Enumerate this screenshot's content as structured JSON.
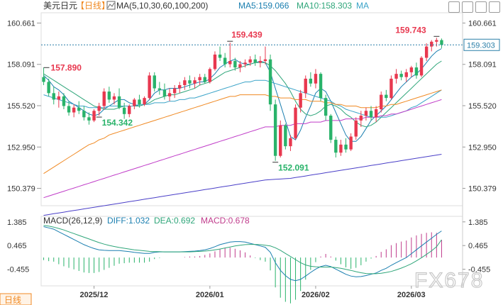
{
  "header": {
    "symbol": "美元日元",
    "period": "【日线】",
    "ma_label": "MA(5,10,30,60,100,200)",
    "ma5": "MA5:159.066",
    "ma10": "MA10:158.303",
    "ma": "MA"
  },
  "macd_header": {
    "title": "MACD(26,12,9)",
    "diff": "DIFF:1.032",
    "dea": "DEA:0.692",
    "macd": "MACD:0.678"
  },
  "bottom_label": "日线",
  "watermark": "FX678",
  "colors": {
    "up": "#e8384f",
    "down": "#29b36a",
    "ma5": "#1b7fb0",
    "ma10": "#2fa67a",
    "ma30": "#3aa3c8",
    "ma60": "#f08a24",
    "ma100": "#c03cc8",
    "ma200": "#4a3fc8",
    "price_line": "#2a7fa8",
    "label_high": "#e8384f",
    "label_low": "#29b36a"
  },
  "chart_data": {
    "type": "candlestick",
    "title": "美元日元 日线",
    "y_ticks": [
      150.379,
      152.95,
      155.52,
      158.091,
      160.661
    ],
    "y_tick_labels": [
      "150.379",
      "152.950",
      "155.520",
      "158.091",
      "160.661"
    ],
    "ylim": [
      149.3,
      161.3
    ],
    "x_ticks": [
      {
        "index": 10,
        "label": "2025/12"
      },
      {
        "index": 33,
        "label": "2026/01"
      },
      {
        "index": 54,
        "label": "2026/02"
      },
      {
        "index": 73,
        "label": "2026/03"
      }
    ],
    "current_price": 159.303,
    "current_price_label": "159.303",
    "annotations": [
      {
        "index": 0,
        "value": 157.89,
        "label": "157.890",
        "kind": "high"
      },
      {
        "index": 11,
        "value": 154.342,
        "label": "154.342",
        "kind": "low"
      },
      {
        "index": 37,
        "value": 159.439,
        "label": "159.439",
        "kind": "high"
      },
      {
        "index": 46,
        "value": 152.091,
        "label": "152.091",
        "kind": "low"
      },
      {
        "index": 78,
        "value": 159.743,
        "label": "159.743",
        "kind": "high"
      }
    ],
    "candles": [
      [
        157.3,
        157.89,
        156.8,
        157.0
      ],
      [
        157.0,
        157.2,
        156.1,
        156.3
      ],
      [
        156.3,
        156.7,
        155.6,
        155.9
      ],
      [
        155.9,
        156.4,
        155.4,
        156.1
      ],
      [
        156.1,
        156.3,
        155.3,
        155.5
      ],
      [
        155.5,
        155.8,
        154.9,
        155.1
      ],
      [
        155.1,
        155.6,
        154.8,
        155.4
      ],
      [
        155.4,
        155.8,
        155.0,
        155.2
      ],
      [
        155.2,
        155.5,
        154.6,
        154.8
      ],
      [
        154.8,
        155.1,
        154.342,
        154.6
      ],
      [
        154.6,
        155.3,
        154.5,
        155.2
      ],
      [
        155.2,
        155.7,
        154.9,
        155.5
      ],
      [
        155.5,
        156.6,
        155.3,
        156.4
      ],
      [
        156.4,
        156.7,
        155.7,
        155.9
      ],
      [
        155.9,
        156.3,
        155.6,
        156.1
      ],
      [
        156.1,
        156.6,
        155.3,
        155.4
      ],
      [
        155.4,
        155.7,
        154.7,
        155.0
      ],
      [
        155.0,
        155.6,
        154.8,
        155.5
      ],
      [
        155.5,
        156.0,
        155.3,
        155.9
      ],
      [
        155.9,
        156.2,
        155.4,
        155.6
      ],
      [
        155.6,
        156.1,
        155.5,
        156.0
      ],
      [
        156.0,
        157.6,
        155.9,
        157.4
      ],
      [
        157.4,
        157.6,
        156.4,
        156.6
      ],
      [
        156.6,
        157.0,
        156.2,
        156.5
      ],
      [
        156.5,
        156.9,
        155.9,
        156.1
      ],
      [
        156.1,
        156.6,
        155.8,
        156.3
      ],
      [
        156.3,
        156.8,
        156.0,
        156.6
      ],
      [
        156.6,
        157.0,
        156.3,
        156.8
      ],
      [
        156.8,
        157.3,
        156.5,
        157.1
      ],
      [
        157.1,
        157.4,
        156.6,
        156.9
      ],
      [
        156.9,
        157.3,
        156.6,
        157.1
      ],
      [
        157.1,
        157.5,
        156.8,
        157.3
      ],
      [
        157.3,
        157.5,
        156.9,
        157.0
      ],
      [
        157.0,
        157.9,
        156.9,
        157.8
      ],
      [
        157.8,
        158.9,
        157.7,
        158.7
      ],
      [
        158.7,
        159.2,
        158.3,
        158.5
      ],
      [
        158.5,
        158.8,
        157.9,
        158.1
      ],
      [
        158.1,
        159.439,
        157.9,
        158.3
      ],
      [
        158.3,
        158.5,
        157.7,
        157.9
      ],
      [
        157.9,
        158.3,
        157.6,
        158.1
      ],
      [
        158.1,
        158.4,
        157.9,
        158.2
      ],
      [
        158.2,
        158.6,
        158.0,
        158.4
      ],
      [
        158.4,
        158.7,
        158.0,
        158.2
      ],
      [
        158.2,
        158.6,
        157.9,
        158.3
      ],
      [
        158.3,
        159.2,
        158.1,
        158.4
      ],
      [
        158.4,
        158.7,
        155.2,
        155.6
      ],
      [
        155.6,
        155.9,
        152.091,
        152.4
      ],
      [
        152.4,
        154.6,
        152.3,
        154.3
      ],
      [
        154.3,
        154.4,
        152.8,
        153.0
      ],
      [
        153.0,
        153.7,
        152.7,
        153.5
      ],
      [
        153.5,
        155.6,
        153.4,
        155.4
      ],
      [
        155.4,
        156.5,
        155.1,
        156.3
      ],
      [
        156.3,
        157.4,
        156.0,
        157.2
      ],
      [
        157.2,
        157.6,
        156.7,
        156.9
      ],
      [
        156.9,
        157.8,
        156.6,
        157.5
      ],
      [
        157.5,
        157.6,
        155.8,
        156.0
      ],
      [
        156.0,
        156.2,
        154.6,
        154.9
      ],
      [
        154.9,
        155.0,
        153.2,
        153.4
      ],
      [
        153.4,
        153.6,
        152.3,
        152.6
      ],
      [
        152.6,
        153.4,
        152.4,
        153.1
      ],
      [
        153.1,
        153.5,
        152.6,
        152.8
      ],
      [
        152.8,
        153.8,
        152.7,
        153.6
      ],
      [
        153.6,
        154.8,
        153.4,
        154.6
      ],
      [
        154.6,
        155.2,
        154.2,
        154.9
      ],
      [
        154.9,
        155.4,
        154.6,
        155.2
      ],
      [
        155.2,
        155.5,
        154.6,
        154.8
      ],
      [
        154.8,
        155.5,
        154.5,
        155.3
      ],
      [
        155.3,
        156.4,
        155.1,
        156.2
      ],
      [
        156.2,
        156.5,
        155.8,
        156.0
      ],
      [
        156.0,
        157.4,
        155.9,
        157.2
      ],
      [
        157.2,
        157.8,
        156.9,
        157.5
      ],
      [
        157.5,
        157.7,
        157.1,
        157.3
      ],
      [
        157.3,
        157.8,
        157.0,
        157.6
      ],
      [
        157.6,
        158.0,
        157.3,
        157.9
      ],
      [
        157.9,
        158.2,
        157.2,
        157.4
      ],
      [
        157.4,
        158.6,
        157.3,
        158.5
      ],
      [
        158.5,
        159.4,
        158.3,
        159.2
      ],
      [
        159.2,
        159.6,
        158.9,
        159.5
      ],
      [
        159.5,
        159.743,
        159.2,
        159.6
      ],
      [
        159.6,
        159.7,
        159.1,
        159.3
      ]
    ],
    "series": [
      {
        "name": "MA5",
        "values": [
          157.4,
          157.1,
          156.7,
          156.5,
          156.2,
          155.8,
          155.6,
          155.4,
          155.2,
          155.0,
          154.9,
          155.0,
          155.3,
          155.5,
          155.7,
          155.9,
          155.9,
          155.7,
          155.6,
          155.5,
          155.6,
          155.9,
          156.3,
          156.5,
          156.5,
          156.6,
          156.6,
          156.6,
          156.7,
          156.8,
          156.9,
          157.0,
          157.0,
          157.2,
          157.5,
          157.9,
          158.1,
          158.3,
          158.4,
          158.2,
          158.1,
          158.1,
          158.2,
          158.3,
          158.2,
          157.6,
          156.6,
          155.6,
          154.6,
          153.6,
          153.4,
          154.0,
          154.8,
          155.5,
          156.3,
          156.6,
          156.4,
          155.8,
          155.1,
          154.4,
          153.7,
          153.3,
          153.3,
          153.6,
          154.1,
          154.6,
          154.9,
          155.2,
          155.5,
          155.9,
          156.3,
          156.7,
          157.0,
          157.3,
          157.5,
          157.8,
          158.2,
          158.6,
          158.9,
          159.07
        ]
      },
      {
        "name": "MA10",
        "values": [
          157.5,
          157.3,
          157.1,
          156.9,
          156.7,
          156.5,
          156.3,
          156.1,
          155.9,
          155.7,
          155.5,
          155.4,
          155.3,
          155.3,
          155.3,
          155.4,
          155.5,
          155.5,
          155.5,
          155.5,
          155.6,
          155.7,
          155.9,
          156.0,
          156.1,
          156.2,
          156.2,
          156.3,
          156.4,
          156.5,
          156.6,
          156.8,
          156.9,
          157.0,
          157.2,
          157.4,
          157.6,
          157.7,
          157.8,
          157.9,
          158.0,
          158.1,
          158.2,
          158.2,
          158.2,
          158.0,
          157.7,
          157.3,
          156.9,
          156.4,
          155.8,
          155.3,
          155.0,
          154.9,
          155.0,
          155.2,
          155.5,
          155.6,
          155.5,
          155.3,
          155.0,
          154.8,
          154.5,
          154.3,
          154.2,
          154.3,
          154.5,
          154.8,
          155.1,
          155.4,
          155.7,
          156.0,
          156.3,
          156.6,
          156.9,
          157.2,
          157.5,
          157.8,
          158.1,
          158.3
        ]
      },
      {
        "name": "MA30",
        "values": [
          156.2,
          156.1,
          156.0,
          155.9,
          155.8,
          155.7,
          155.6,
          155.5,
          155.5,
          155.4,
          155.4,
          155.4,
          155.4,
          155.5,
          155.5,
          155.5,
          155.5,
          155.5,
          155.5,
          155.6,
          155.6,
          155.6,
          155.7,
          155.7,
          155.7,
          155.8,
          155.8,
          155.9,
          155.9,
          156.0,
          156.0,
          156.1,
          156.2,
          156.3,
          156.4,
          156.5,
          156.6,
          156.7,
          156.8,
          156.9,
          157.0,
          157.0,
          157.1,
          157.1,
          157.1,
          157.0,
          156.9,
          156.8,
          156.7,
          156.6,
          156.5,
          156.4,
          156.3,
          156.2,
          156.1,
          156.0,
          155.9,
          155.8,
          155.6,
          155.5,
          155.3,
          155.2,
          155.1,
          155.0,
          154.9,
          154.8,
          154.8,
          154.8,
          154.8,
          154.9,
          155.0,
          155.1,
          155.2,
          155.4,
          155.5,
          155.7,
          155.9,
          156.1,
          156.3,
          156.5
        ]
      },
      {
        "name": "MA60",
        "values": [
          151.3,
          151.5,
          151.7,
          151.9,
          152.1,
          152.3,
          152.5,
          152.7,
          152.9,
          153.1,
          153.2,
          153.4,
          153.5,
          153.7,
          153.8,
          153.9,
          154.0,
          154.1,
          154.2,
          154.3,
          154.4,
          154.5,
          154.6,
          154.7,
          154.8,
          154.9,
          155.0,
          155.1,
          155.2,
          155.3,
          155.4,
          155.5,
          155.6,
          155.7,
          155.8,
          155.9,
          156.0,
          156.1,
          156.1,
          156.2,
          156.2,
          156.2,
          156.2,
          156.2,
          156.2,
          156.1,
          156.1,
          156.0,
          156.0,
          156.0,
          155.9,
          155.9,
          155.9,
          155.8,
          155.8,
          155.8,
          155.7,
          155.7,
          155.6,
          155.6,
          155.5,
          155.5,
          155.5,
          155.4,
          155.4,
          155.4,
          155.4,
          155.5,
          155.5,
          155.6,
          155.6,
          155.7,
          155.8,
          155.9,
          156.0,
          156.1,
          156.2,
          156.3,
          156.4,
          156.5
        ]
      },
      {
        "name": "MA100",
        "values": [
          149.8,
          149.9,
          150.0,
          150.1,
          150.2,
          150.3,
          150.4,
          150.5,
          150.6,
          150.7,
          150.8,
          150.9,
          151.0,
          151.1,
          151.2,
          151.3,
          151.4,
          151.5,
          151.6,
          151.7,
          151.8,
          151.9,
          152.0,
          152.1,
          152.2,
          152.3,
          152.4,
          152.5,
          152.6,
          152.7,
          152.8,
          152.9,
          153.0,
          153.1,
          153.2,
          153.3,
          153.4,
          153.5,
          153.6,
          153.7,
          153.8,
          153.9,
          154.0,
          154.1,
          154.2,
          154.2,
          154.2,
          154.3,
          154.3,
          154.3,
          154.4,
          154.4,
          154.4,
          154.5,
          154.5,
          154.5,
          154.6,
          154.6,
          154.6,
          154.6,
          154.7,
          154.7,
          154.7,
          154.7,
          154.8,
          154.8,
          154.8,
          154.9,
          154.9,
          155.0,
          155.0,
          155.1,
          155.2,
          155.3,
          155.4,
          155.5,
          155.6,
          155.7,
          155.8,
          155.9
        ]
      },
      {
        "name": "MA200",
        "values": [
          148.7,
          148.75,
          148.8,
          148.85,
          148.9,
          148.95,
          149.0,
          149.05,
          149.1,
          149.15,
          149.2,
          149.25,
          149.3,
          149.35,
          149.4,
          149.45,
          149.5,
          149.55,
          149.6,
          149.65,
          149.7,
          149.75,
          149.8,
          149.85,
          149.9,
          149.95,
          150.0,
          150.05,
          150.1,
          150.15,
          150.2,
          150.25,
          150.3,
          150.35,
          150.4,
          150.45,
          150.5,
          150.55,
          150.6,
          150.65,
          150.7,
          150.75,
          150.8,
          150.85,
          150.9,
          150.92,
          150.94,
          150.96,
          150.98,
          151.0,
          151.05,
          151.1,
          151.15,
          151.2,
          151.25,
          151.3,
          151.35,
          151.4,
          151.45,
          151.5,
          151.55,
          151.6,
          151.65,
          151.7,
          151.75,
          151.8,
          151.85,
          151.9,
          151.95,
          152.0,
          152.05,
          152.1,
          152.15,
          152.2,
          152.25,
          152.3,
          152.35,
          152.4,
          152.45,
          152.5
        ]
      }
    ],
    "macd": {
      "y_ticks": [
        1.385,
        0.465,
        -0.455
      ],
      "y_tick_labels": [
        "1.385",
        "0.465",
        "-0.455"
      ],
      "ylim": [
        -1.1,
        1.6
      ],
      "diff": [
        1.2,
        1.15,
        1.1,
        1.0,
        0.9,
        0.8,
        0.7,
        0.6,
        0.5,
        0.42,
        0.35,
        0.3,
        0.28,
        0.27,
        0.27,
        0.27,
        0.25,
        0.23,
        0.2,
        0.18,
        0.16,
        0.16,
        0.2,
        0.22,
        0.22,
        0.22,
        0.22,
        0.22,
        0.23,
        0.24,
        0.25,
        0.27,
        0.3,
        0.35,
        0.42,
        0.5,
        0.55,
        0.6,
        0.62,
        0.62,
        0.6,
        0.55,
        0.5,
        0.45,
        0.4,
        0.2,
        -0.2,
        -0.5,
        -0.7,
        -0.85,
        -0.9,
        -0.85,
        -0.72,
        -0.58,
        -0.45,
        -0.35,
        -0.3,
        -0.35,
        -0.45,
        -0.55,
        -0.65,
        -0.72,
        -0.75,
        -0.74,
        -0.7,
        -0.65,
        -0.6,
        -0.5,
        -0.42,
        -0.3,
        -0.2,
        -0.1,
        0.0,
        0.15,
        0.3,
        0.45,
        0.6,
        0.75,
        0.9,
        1.032
      ],
      "dea": [
        1.25,
        1.22,
        1.18,
        1.13,
        1.07,
        1.0,
        0.93,
        0.86,
        0.79,
        0.72,
        0.65,
        0.58,
        0.52,
        0.47,
        0.43,
        0.39,
        0.36,
        0.33,
        0.3,
        0.28,
        0.26,
        0.24,
        0.23,
        0.23,
        0.22,
        0.22,
        0.22,
        0.22,
        0.22,
        0.22,
        0.23,
        0.24,
        0.25,
        0.27,
        0.3,
        0.33,
        0.37,
        0.41,
        0.45,
        0.48,
        0.5,
        0.51,
        0.51,
        0.5,
        0.48,
        0.45,
        0.38,
        0.28,
        0.16,
        0.04,
        -0.08,
        -0.2,
        -0.29,
        -0.34,
        -0.36,
        -0.37,
        -0.37,
        -0.37,
        -0.39,
        -0.42,
        -0.46,
        -0.5,
        -0.55,
        -0.59,
        -0.62,
        -0.63,
        -0.63,
        -0.61,
        -0.58,
        -0.54,
        -0.48,
        -0.41,
        -0.33,
        -0.24,
        -0.13,
        -0.01,
        0.12,
        0.26,
        0.42,
        0.692
      ]
    }
  }
}
